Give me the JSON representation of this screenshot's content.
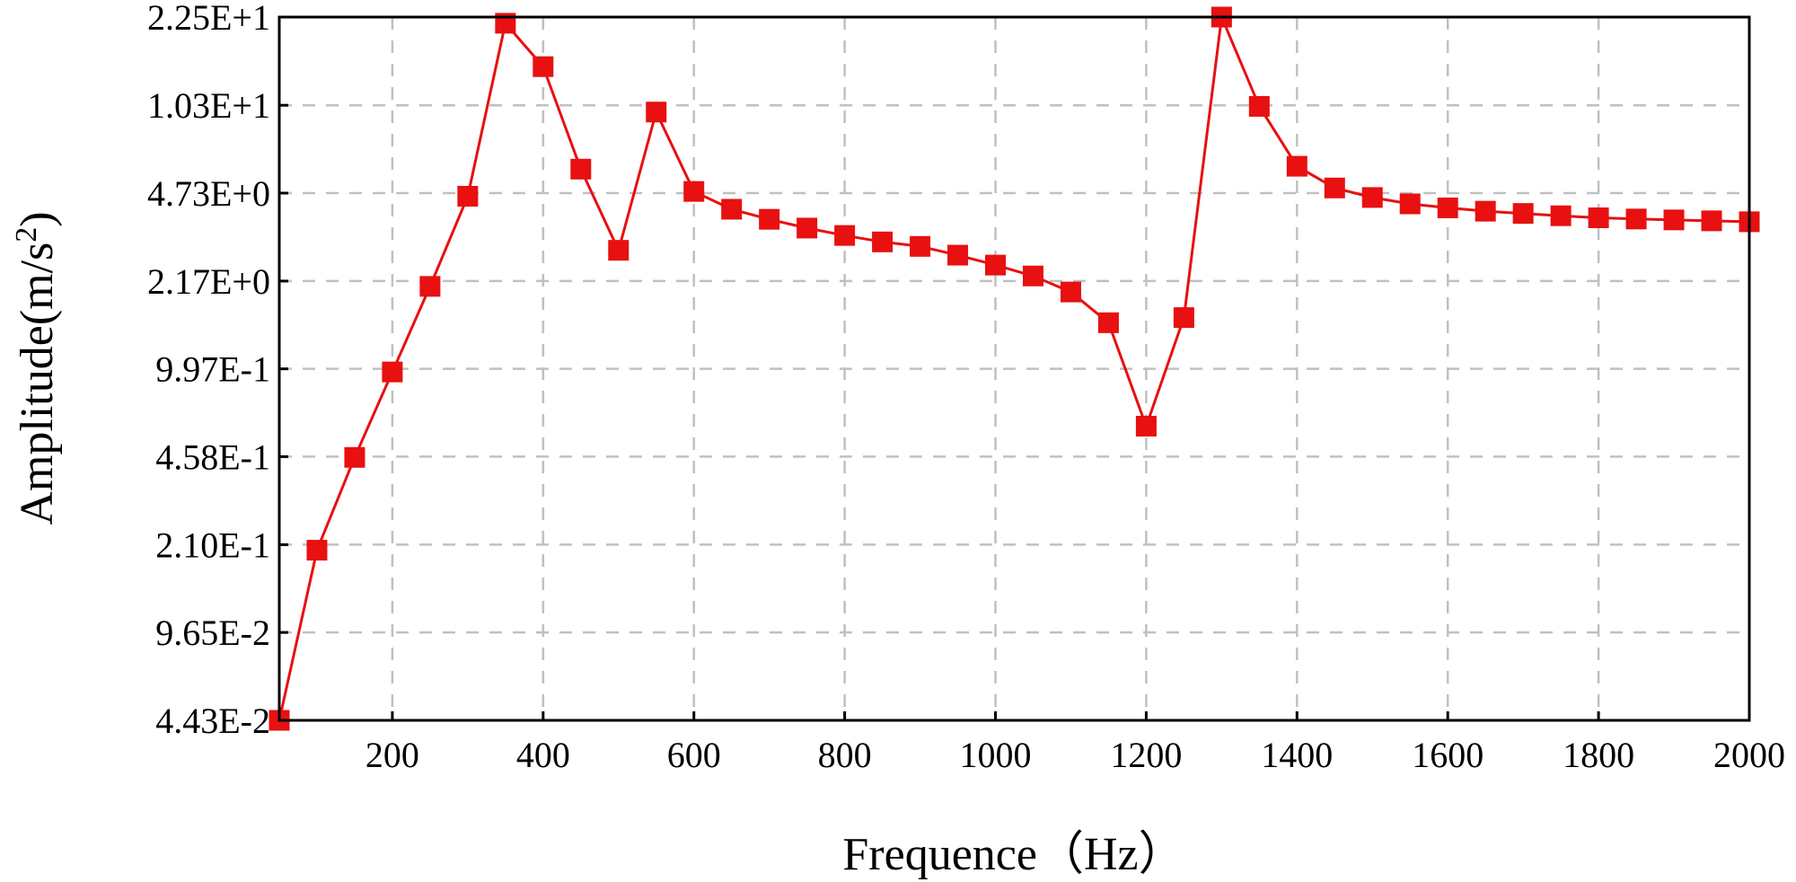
{
  "chart_data": {
    "type": "line",
    "title": "",
    "xlabel": "Frequence（Hz）",
    "ylabel": "Amplitude(m/s",
    "ylabel_superscript": "2",
    "ylabel_suffix": ")",
    "xlim": [
      50,
      2000
    ],
    "x_ticks": [
      200,
      400,
      600,
      800,
      1000,
      1200,
      1400,
      1600,
      1800,
      2000
    ],
    "y_scale": "log",
    "y_ticks": [
      0.0443,
      0.0965,
      0.21,
      0.458,
      0.997,
      2.17,
      4.73,
      10.3,
      22.5
    ],
    "y_tick_labels": [
      "4.43E-2",
      "9.65E-2",
      "2.10E-1",
      "4.58E-1",
      "9.97E-1",
      "2.17E+0",
      "4.73E+0",
      "1.03E+1",
      "2.25E+1"
    ],
    "ylim": [
      0.0443,
      22.5
    ],
    "grid": true,
    "series": [
      {
        "color": "#e81010",
        "marker": "square",
        "x": [
          50,
          100,
          150,
          200,
          250,
          300,
          350,
          400,
          450,
          500,
          550,
          600,
          650,
          700,
          750,
          800,
          850,
          900,
          950,
          1000,
          1050,
          1100,
          1150,
          1200,
          1250,
          1300,
          1350,
          1400,
          1450,
          1500,
          1550,
          1600,
          1650,
          1700,
          1750,
          1800,
          1850,
          1900,
          1950,
          2000
        ],
        "y": [
          0.0443,
          0.2,
          0.455,
          0.97,
          2.07,
          4.6,
          21.3,
          14.5,
          5.85,
          2.85,
          9.7,
          4.8,
          4.1,
          3.75,
          3.47,
          3.25,
          3.07,
          2.95,
          2.73,
          2.5,
          2.27,
          1.97,
          1.5,
          0.6,
          1.57,
          22.5,
          10.2,
          6.0,
          4.95,
          4.55,
          4.3,
          4.15,
          4.03,
          3.95,
          3.87,
          3.8,
          3.76,
          3.73,
          3.7,
          3.67
        ]
      }
    ]
  }
}
